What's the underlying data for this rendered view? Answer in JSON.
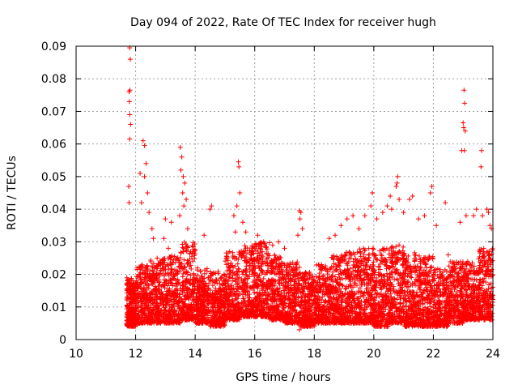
{
  "chart_data": {
    "type": "scatter",
    "title": "Day 094 of 2022, Rate Of TEC Index for receiver hugh",
    "xlabel": "GPS time / hours",
    "ylabel": "ROTI / TECUs",
    "xlim": [
      10,
      24
    ],
    "ylim": [
      0,
      0.09
    ],
    "xticks": [
      10,
      12,
      14,
      16,
      18,
      20,
      22,
      24
    ],
    "xtick_labels": [
      "10",
      "12",
      "14",
      "16",
      "18",
      "20",
      "22",
      "24"
    ],
    "yticks": [
      0,
      0.01,
      0.02,
      0.03,
      0.04,
      0.05,
      0.06,
      0.07,
      0.08,
      0.09
    ],
    "ytick_labels": [
      "0",
      "0.01",
      "0.02",
      "0.03",
      "0.04",
      "0.05",
      "0.06",
      "0.07",
      "0.08",
      "0.09"
    ],
    "grid": true,
    "marker": "+",
    "series": [
      {
        "name": "ROTI",
        "color": "#ff0000",
        "points": [
          [
            11.8,
            0.0895
          ],
          [
            11.82,
            0.086
          ],
          [
            11.78,
            0.076
          ],
          [
            11.81,
            0.0765
          ],
          [
            11.79,
            0.073
          ],
          [
            11.8,
            0.069
          ],
          [
            11.83,
            0.066
          ],
          [
            11.8,
            0.0615
          ],
          [
            11.77,
            0.047
          ],
          [
            11.78,
            0.042
          ],
          [
            12.25,
            0.061
          ],
          [
            12.3,
            0.0595
          ],
          [
            12.35,
            0.054
          ],
          [
            12.3,
            0.05
          ],
          [
            12.15,
            0.051
          ],
          [
            12.4,
            0.045
          ],
          [
            12.2,
            0.042
          ],
          [
            12.45,
            0.039
          ],
          [
            12.55,
            0.034
          ],
          [
            12.6,
            0.031
          ],
          [
            13.0,
            0.037
          ],
          [
            12.95,
            0.031
          ],
          [
            13.2,
            0.036
          ],
          [
            13.1,
            0.028
          ],
          [
            13.5,
            0.059
          ],
          [
            13.55,
            0.056
          ],
          [
            13.52,
            0.052
          ],
          [
            13.6,
            0.05
          ],
          [
            13.65,
            0.048
          ],
          [
            13.58,
            0.045
          ],
          [
            13.7,
            0.043
          ],
          [
            13.62,
            0.041
          ],
          [
            13.48,
            0.038
          ],
          [
            13.75,
            0.034
          ],
          [
            14.3,
            0.032
          ],
          [
            14.5,
            0.04
          ],
          [
            14.55,
            0.041
          ],
          [
            15.3,
            0.038
          ],
          [
            15.4,
            0.041
          ],
          [
            15.45,
            0.0545
          ],
          [
            15.47,
            0.053
          ],
          [
            15.5,
            0.045
          ],
          [
            15.6,
            0.036
          ],
          [
            15.35,
            0.033
          ],
          [
            15.7,
            0.033
          ],
          [
            16.1,
            0.032
          ],
          [
            16.3,
            0.03
          ],
          [
            16.6,
            0.029
          ],
          [
            16.8,
            0.03
          ],
          [
            17.0,
            0.028
          ],
          [
            17.5,
            0.0395
          ],
          [
            17.55,
            0.039
          ],
          [
            17.52,
            0.037
          ],
          [
            17.6,
            0.034
          ],
          [
            17.45,
            0.032
          ],
          [
            17.5,
            0.003
          ],
          [
            17.55,
            0.004
          ],
          [
            18.5,
            0.031
          ],
          [
            18.7,
            0.032
          ],
          [
            18.9,
            0.035
          ],
          [
            19.1,
            0.037
          ],
          [
            19.3,
            0.038
          ],
          [
            19.5,
            0.034
          ],
          [
            19.7,
            0.038
          ],
          [
            19.9,
            0.041
          ],
          [
            19.95,
            0.045
          ],
          [
            20.1,
            0.037
          ],
          [
            20.3,
            0.039
          ],
          [
            20.45,
            0.041
          ],
          [
            20.55,
            0.044
          ],
          [
            20.6,
            0.04
          ],
          [
            20.75,
            0.047
          ],
          [
            20.8,
            0.05
          ],
          [
            20.78,
            0.048
          ],
          [
            20.85,
            0.043
          ],
          [
            21.0,
            0.039
          ],
          [
            21.2,
            0.043
          ],
          [
            21.3,
            0.044
          ],
          [
            21.5,
            0.037
          ],
          [
            21.7,
            0.038
          ],
          [
            21.9,
            0.045
          ],
          [
            21.95,
            0.047
          ],
          [
            22.1,
            0.035
          ],
          [
            22.4,
            0.042
          ],
          [
            22.5,
            0.026
          ],
          [
            22.9,
            0.036
          ],
          [
            22.95,
            0.058
          ],
          [
            23.0,
            0.0665
          ],
          [
            23.02,
            0.065
          ],
          [
            23.05,
            0.0725
          ],
          [
            23.03,
            0.0765
          ],
          [
            23.07,
            0.064
          ],
          [
            23.04,
            0.058
          ],
          [
            23.1,
            0.038
          ],
          [
            23.35,
            0.038
          ],
          [
            23.45,
            0.04
          ],
          [
            23.6,
            0.053
          ],
          [
            23.62,
            0.058
          ],
          [
            23.65,
            0.038
          ],
          [
            23.8,
            0.04
          ],
          [
            23.85,
            0.039
          ],
          [
            23.9,
            0.035
          ],
          [
            23.95,
            0.034
          ]
        ],
        "bands": [
          [
            11.7,
            12.0,
            0.004,
            0.019
          ],
          [
            12.0,
            12.5,
            0.005,
            0.023
          ],
          [
            12.5,
            13.0,
            0.005,
            0.025
          ],
          [
            13.0,
            13.5,
            0.005,
            0.026
          ],
          [
            13.5,
            14.0,
            0.006,
            0.03
          ],
          [
            14.0,
            14.5,
            0.005,
            0.022
          ],
          [
            14.5,
            15.0,
            0.004,
            0.021
          ],
          [
            15.0,
            15.5,
            0.006,
            0.027
          ],
          [
            15.5,
            16.0,
            0.007,
            0.029
          ],
          [
            16.0,
            16.5,
            0.007,
            0.03
          ],
          [
            16.5,
            17.0,
            0.006,
            0.026
          ],
          [
            17.0,
            17.5,
            0.005,
            0.024
          ],
          [
            17.5,
            18.0,
            0.004,
            0.021
          ],
          [
            18.0,
            18.5,
            0.005,
            0.023
          ],
          [
            18.5,
            19.0,
            0.005,
            0.026
          ],
          [
            19.0,
            19.5,
            0.005,
            0.027
          ],
          [
            19.5,
            20.0,
            0.005,
            0.028
          ],
          [
            20.0,
            20.5,
            0.004,
            0.028
          ],
          [
            20.5,
            21.0,
            0.005,
            0.029
          ],
          [
            21.0,
            21.5,
            0.004,
            0.027
          ],
          [
            21.5,
            22.0,
            0.004,
            0.026
          ],
          [
            22.0,
            22.5,
            0.004,
            0.022
          ],
          [
            22.5,
            23.0,
            0.005,
            0.024
          ],
          [
            23.0,
            23.5,
            0.006,
            0.024
          ],
          [
            23.5,
            24.0,
            0.006,
            0.028
          ]
        ]
      }
    ]
  }
}
